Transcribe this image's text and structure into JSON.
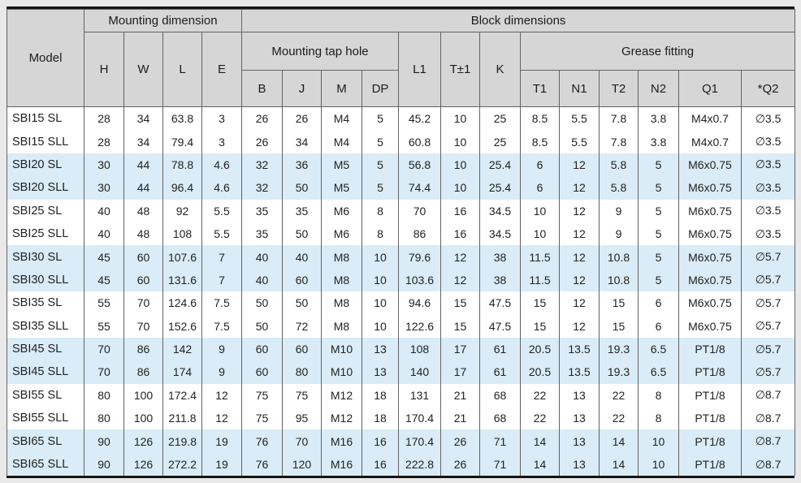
{
  "page": {
    "background_color": "#e9e9e9",
    "rule_color": "#151515"
  },
  "table": {
    "colors": {
      "header_bg": "#d6d6d6",
      "row_bg": "#ffffff",
      "row_highlight_bg": "#d9ecf7",
      "grid_line": "#636363",
      "text": "#222222"
    },
    "header": {
      "model": "Model",
      "mounting_dimension": "Mounting dimension",
      "block_dimensions": "Block dimensions",
      "mounting_tap_hole": "Mounting tap hole",
      "grease_fitting": "Grease fitting",
      "mount_cols": [
        "H",
        "W",
        "L",
        "E"
      ],
      "tap_cols": [
        "B",
        "J",
        "M",
        "DP"
      ],
      "mid_cols": [
        "L1",
        "T±1",
        "K"
      ],
      "grease_cols": [
        "T1",
        "N1",
        "T2",
        "N2",
        "Q1",
        "*Q2"
      ]
    },
    "rows": [
      {
        "model": "SBI15 SL",
        "highlight": false,
        "values": [
          "28",
          "34",
          "63.8",
          "3",
          "26",
          "26",
          "M4",
          "5",
          "45.2",
          "10",
          "25",
          "8.5",
          "5.5",
          "7.8",
          "3.8",
          "M4x0.7",
          "∅3.5"
        ]
      },
      {
        "model": "SBI15 SLL",
        "highlight": false,
        "values": [
          "28",
          "34",
          "79.4",
          "3",
          "26",
          "34",
          "M4",
          "5",
          "60.8",
          "10",
          "25",
          "8.5",
          "5.5",
          "7.8",
          "3.8",
          "M4x0.7",
          "∅3.5"
        ]
      },
      {
        "model": "SBI20 SL",
        "highlight": true,
        "values": [
          "30",
          "44",
          "78.8",
          "4.6",
          "32",
          "36",
          "M5",
          "5",
          "56.8",
          "10",
          "25.4",
          "6",
          "12",
          "5.8",
          "5",
          "M6x0.75",
          "∅3.5"
        ]
      },
      {
        "model": "SBI20 SLL",
        "highlight": true,
        "values": [
          "30",
          "44",
          "96.4",
          "4.6",
          "32",
          "50",
          "M5",
          "5",
          "74.4",
          "10",
          "25.4",
          "6",
          "12",
          "5.8",
          "5",
          "M6x0.75",
          "∅3.5"
        ]
      },
      {
        "model": "SBI25 SL",
        "highlight": false,
        "values": [
          "40",
          "48",
          "92",
          "5.5",
          "35",
          "35",
          "M6",
          "8",
          "70",
          "16",
          "34.5",
          "10",
          "12",
          "9",
          "5",
          "M6x0.75",
          "∅3.5"
        ]
      },
      {
        "model": "SBI25 SLL",
        "highlight": false,
        "values": [
          "40",
          "48",
          "108",
          "5.5",
          "35",
          "50",
          "M6",
          "8",
          "86",
          "16",
          "34.5",
          "10",
          "12",
          "9",
          "5",
          "M6x0.75",
          "∅3.5"
        ]
      },
      {
        "model": "SBI30 SL",
        "highlight": true,
        "values": [
          "45",
          "60",
          "107.6",
          "7",
          "40",
          "40",
          "M8",
          "10",
          "79.6",
          "12",
          "38",
          "11.5",
          "12",
          "10.8",
          "5",
          "M6x0.75",
          "∅5.7"
        ]
      },
      {
        "model": "SBI30 SLL",
        "highlight": true,
        "values": [
          "45",
          "60",
          "131.6",
          "7",
          "40",
          "60",
          "M8",
          "10",
          "103.6",
          "12",
          "38",
          "11.5",
          "12",
          "10.8",
          "5",
          "M6x0.75",
          "∅5.7"
        ]
      },
      {
        "model": "SBI35 SL",
        "highlight": false,
        "values": [
          "55",
          "70",
          "124.6",
          "7.5",
          "50",
          "50",
          "M8",
          "10",
          "94.6",
          "15",
          "47.5",
          "15",
          "12",
          "15",
          "6",
          "M6x0.75",
          "∅5.7"
        ]
      },
      {
        "model": "SBI35 SLL",
        "highlight": false,
        "values": [
          "55",
          "70",
          "152.6",
          "7.5",
          "50",
          "72",
          "M8",
          "10",
          "122.6",
          "15",
          "47.5",
          "15",
          "12",
          "15",
          "6",
          "M6x0.75",
          "∅5.7"
        ]
      },
      {
        "model": "SBI45 SL",
        "highlight": true,
        "values": [
          "70",
          "86",
          "142",
          "9",
          "60",
          "60",
          "M10",
          "13",
          "108",
          "17",
          "61",
          "20.5",
          "13.5",
          "19.3",
          "6.5",
          "PT1/8",
          "∅5.7"
        ]
      },
      {
        "model": "SBI45 SLL",
        "highlight": true,
        "values": [
          "70",
          "86",
          "174",
          "9",
          "60",
          "80",
          "M10",
          "13",
          "140",
          "17",
          "61",
          "20.5",
          "13.5",
          "19.3",
          "6.5",
          "PT1/8",
          "∅5.7"
        ]
      },
      {
        "model": "SBI55 SL",
        "highlight": false,
        "values": [
          "80",
          "100",
          "172.4",
          "12",
          "75",
          "75",
          "M12",
          "18",
          "131",
          "21",
          "68",
          "22",
          "13",
          "22",
          "8",
          "PT1/8",
          "∅8.7"
        ]
      },
      {
        "model": "SBI55 SLL",
        "highlight": false,
        "values": [
          "80",
          "100",
          "211.8",
          "12",
          "75",
          "95",
          "M12",
          "18",
          "170.4",
          "21",
          "68",
          "22",
          "13",
          "22",
          "8",
          "PT1/8",
          "∅8.7"
        ]
      },
      {
        "model": "SBI65 SL",
        "highlight": true,
        "values": [
          "90",
          "126",
          "219.8",
          "19",
          "76",
          "70",
          "M16",
          "16",
          "170.4",
          "26",
          "71",
          "14",
          "13",
          "14",
          "10",
          "PT1/8",
          "∅8.7"
        ]
      },
      {
        "model": "SBI65 SLL",
        "highlight": true,
        "values": [
          "90",
          "126",
          "272.2",
          "19",
          "76",
          "120",
          "M16",
          "16",
          "222.8",
          "26",
          "71",
          "14",
          "13",
          "14",
          "10",
          "PT1/8",
          "∅8.7"
        ]
      }
    ]
  }
}
